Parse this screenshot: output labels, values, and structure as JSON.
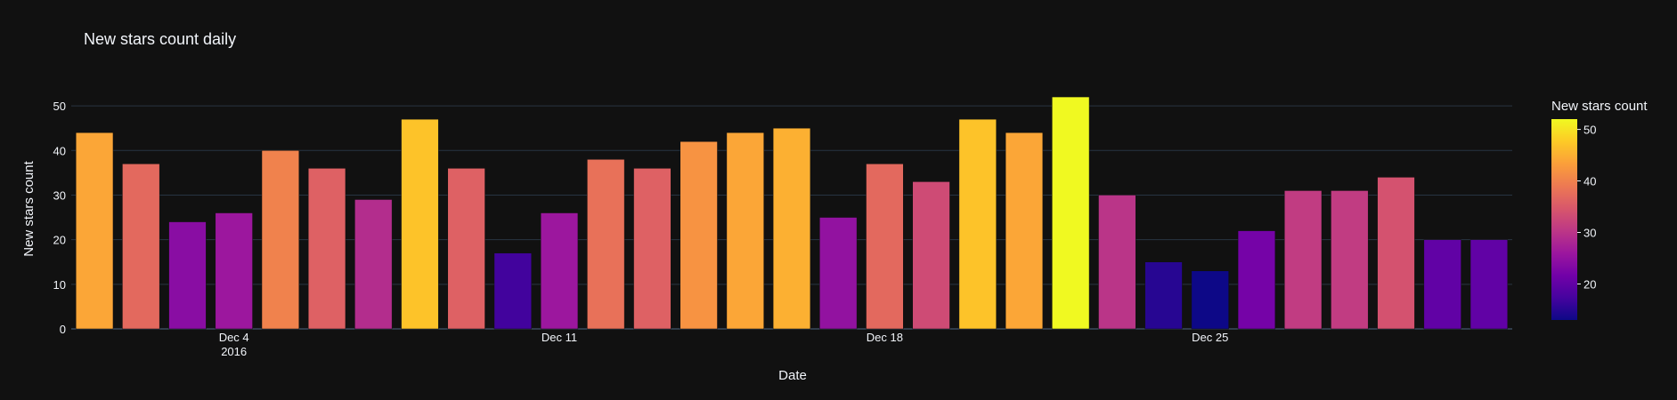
{
  "chart_data": {
    "type": "bar",
    "title": "New stars count daily",
    "xlabel": "Date",
    "ylabel": "New stars count",
    "x_tick_labels": [
      {
        "date": "2016-12-04",
        "label": "Dec 4",
        "sublabel": "2016"
      },
      {
        "date": "2016-12-11",
        "label": "Dec 11",
        "sublabel": ""
      },
      {
        "date": "2016-12-18",
        "label": "Dec 18",
        "sublabel": ""
      },
      {
        "date": "2016-12-25",
        "label": "Dec 25",
        "sublabel": ""
      }
    ],
    "y_ticks": [
      0,
      10,
      20,
      30,
      40,
      50
    ],
    "ylim": [
      0,
      55
    ],
    "xlim": [
      "2016-11-30T12:00",
      "2016-12-31T12:00"
    ],
    "grid": true,
    "x": [
      "2016-12-01",
      "2016-12-02",
      "2016-12-03",
      "2016-12-04",
      "2016-12-05",
      "2016-12-06",
      "2016-12-07",
      "2016-12-08",
      "2016-12-09",
      "2016-12-10",
      "2016-12-11",
      "2016-12-12",
      "2016-12-13",
      "2016-12-14",
      "2016-12-15",
      "2016-12-16",
      "2016-12-17",
      "2016-12-18",
      "2016-12-19",
      "2016-12-20",
      "2016-12-21",
      "2016-12-22",
      "2016-12-23",
      "2016-12-24",
      "2016-12-25",
      "2016-12-26",
      "2016-12-27",
      "2016-12-28",
      "2016-12-29",
      "2016-12-30",
      "2016-12-31"
    ],
    "values": [
      44,
      37,
      24,
      26,
      40,
      36,
      29,
      47,
      36,
      17,
      26,
      38,
      36,
      42,
      44,
      45,
      25,
      37,
      33,
      47,
      44,
      52,
      30,
      15,
      13,
      22,
      31,
      31,
      34,
      20,
      20
    ],
    "colorscale": "Plasma",
    "colorbar": {
      "title": "New stars count",
      "ticks": [
        20,
        30,
        40,
        50
      ],
      "cmin": 13,
      "cmax": 52
    },
    "colors": {
      "background": "#111111",
      "grid": "#283442",
      "text": "#f2f5fa",
      "bar_outline": "#111111"
    }
  }
}
